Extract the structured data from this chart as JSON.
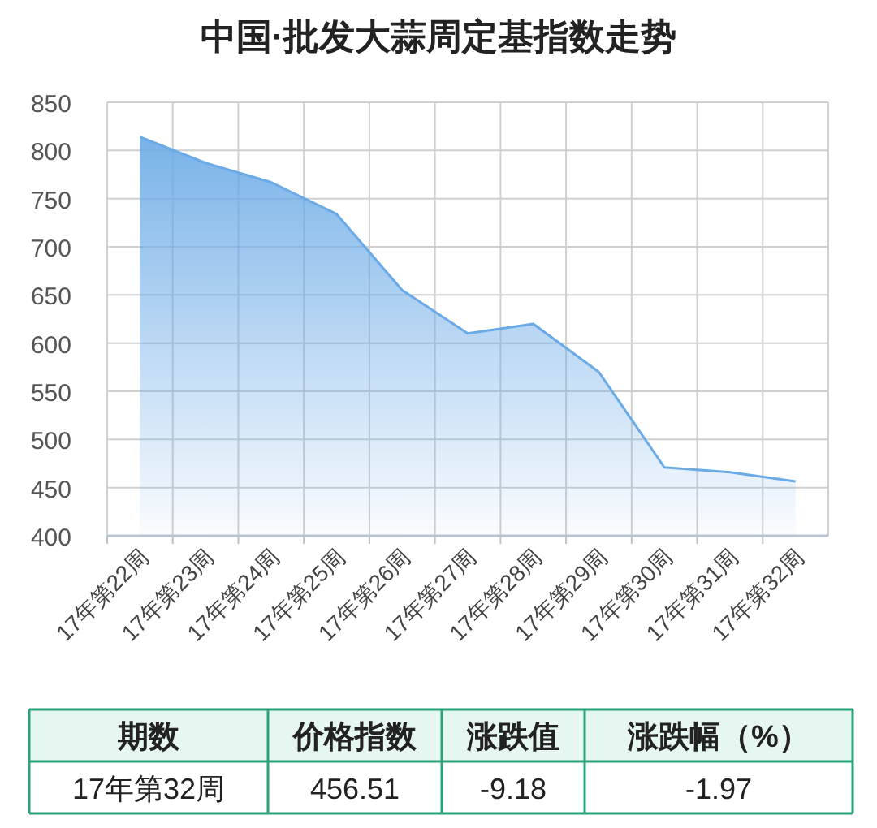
{
  "chart_data": {
    "type": "area",
    "title": "中国·批发大蒜周定基指数走势",
    "categories": [
      "17年第22周",
      "17年第23周",
      "17年第24周",
      "17年第25周",
      "17年第26周",
      "17年第27周",
      "17年第28周",
      "17年第29周",
      "17年第30周",
      "17年第31周",
      "17年第32周"
    ],
    "series": [
      {
        "color": "#6aaae6",
        "values": [
          814,
          787,
          767,
          734,
          655,
          610,
          620,
          570,
          471,
          466,
          456.51
        ]
      }
    ],
    "ylim": [
      400,
      850
    ],
    "yticks": [
      400,
      450,
      500,
      550,
      600,
      650,
      700,
      750,
      800,
      850
    ],
    "grid": true,
    "annotations": [
      "期数",
      "价格指数",
      "涨跌值",
      "涨跌幅（%）",
      "17年第32周",
      "456.51",
      "-9.18",
      "-1.97"
    ]
  }
}
